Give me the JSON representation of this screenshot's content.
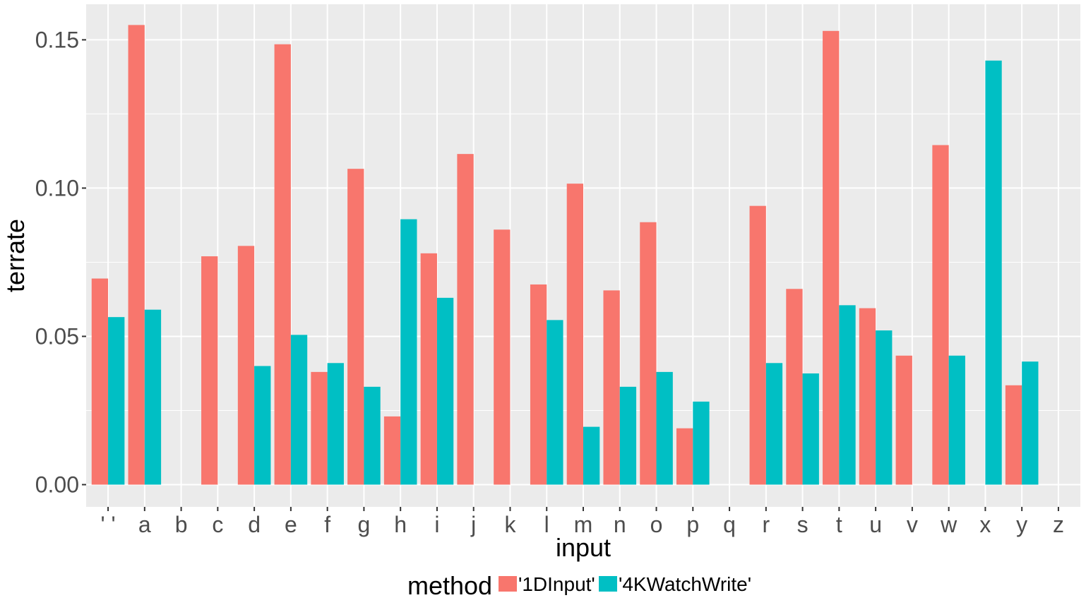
{
  "chart_data": {
    "type": "bar",
    "xlabel": "input",
    "ylabel": "terrate",
    "ylim": [
      -0.0075,
      0.162
    ],
    "yticks": [
      0.0,
      0.05,
      0.1,
      0.15
    ],
    "ytick_labels": [
      "0.00",
      "0.05",
      "0.10",
      "0.15"
    ],
    "categories": [
      "' '",
      "a",
      "b",
      "c",
      "d",
      "e",
      "f",
      "g",
      "h",
      "i",
      "j",
      "k",
      "l",
      "m",
      "n",
      "o",
      "p",
      "q",
      "r",
      "s",
      "t",
      "u",
      "v",
      "w",
      "x",
      "y",
      "z"
    ],
    "series": [
      {
        "name": "'1DInput'",
        "color": "#F8766D",
        "values": [
          0.0695,
          0.155,
          null,
          0.077,
          0.0805,
          0.1485,
          0.038,
          0.1065,
          0.023,
          0.078,
          0.1115,
          0.086,
          0.0675,
          0.1015,
          0.0655,
          0.0885,
          0.019,
          null,
          0.094,
          0.066,
          0.153,
          0.0595,
          0.0435,
          0.1145,
          null,
          0.0335,
          null
        ]
      },
      {
        "name": "'4KWatchWrite'",
        "color": "#00BFC4",
        "values": [
          0.0565,
          0.059,
          null,
          null,
          0.04,
          0.0505,
          0.041,
          0.033,
          0.0895,
          0.063,
          null,
          null,
          0.0555,
          0.0195,
          0.033,
          0.038,
          0.028,
          null,
          0.041,
          0.0375,
          0.0605,
          0.052,
          null,
          0.0435,
          0.143,
          0.0415,
          null
        ]
      }
    ],
    "grid": true,
    "legend": {
      "title": "method",
      "placement": "bottom"
    }
  }
}
